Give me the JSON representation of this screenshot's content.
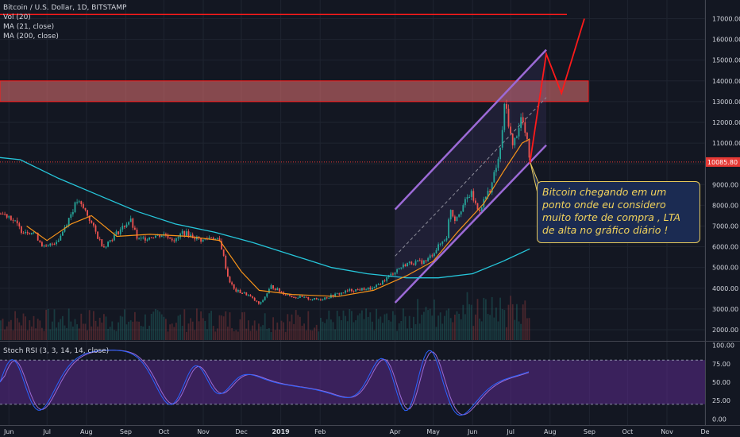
{
  "header": {
    "symbol_line": "Bitcoin / U.S. Dollar, 1D, BITSTAMP",
    "indicators": [
      "Vol (20)",
      "MA (21, close)",
      "MA (200, close)"
    ],
    "stoch_label": "Stoch RSI (3, 3, 14, 14, close)"
  },
  "annotation": {
    "text": "Bitcoin chegando em um ponto onde eu considero muito forte de compra , LTA de alta no gráfico diário !"
  },
  "colors": {
    "background": "#131722",
    "grid": "#1f2430",
    "candle_up": "#26a69a",
    "candle_down": "#ef5350",
    "ma21": "#f7931a",
    "ma200": "#26c6da",
    "zone": "#e57373",
    "channel": "#9c6ad6",
    "projection": "#ff1a1a",
    "stoch_band": "#5b2a8c",
    "stoch_k": "#2962ff",
    "stoch_d": "#9c6ad6",
    "price_tag": "#e53935"
  },
  "chart_data": [
    {
      "type": "line",
      "title": "Bitcoin / U.S. Dollar, 1D, BITSTAMP",
      "x_ticks": [
        "Jun",
        "Jul",
        "Aug",
        "Sep",
        "Oct",
        "Nov",
        "Dec",
        "2019",
        "Feb",
        "Apr",
        "May",
        "Jun",
        "Jul",
        "Aug",
        "Sep",
        "Oct",
        "Nov",
        "De"
      ],
      "y_ticks": [
        2000,
        3000,
        4000,
        5000,
        6000,
        7000,
        8000,
        9000,
        10000,
        11000,
        12000,
        13000,
        14000,
        15000,
        16000,
        17000
      ],
      "y_ticks_labels": [
        "2000.00",
        "3000.00",
        "4000.00",
        "5000.00",
        "6000.00",
        "7000.00",
        "8000.00",
        "9000.00",
        "10000.00",
        "11000.00",
        "12000.00",
        "13000.00",
        "14000.00",
        "15000.00",
        "16000.00",
        "17000.00"
      ],
      "ylim": [
        1500,
        17900
      ],
      "last_price": 10085.8,
      "last_price_label": "10085.80",
      "resistance_line": 17200,
      "zone": [
        13000,
        14000
      ],
      "price_path": [
        [
          "2018-05-25",
          7600
        ],
        [
          "2018-06-01",
          7500
        ],
        [
          "2018-06-10",
          6800
        ],
        [
          "2018-06-20",
          6700
        ],
        [
          "2018-06-29",
          5900
        ],
        [
          "2018-07-10",
          6400
        ],
        [
          "2018-07-24",
          8200
        ],
        [
          "2018-07-31",
          7700
        ],
        [
          "2018-08-10",
          6400
        ],
        [
          "2018-08-14",
          6000
        ],
        [
          "2018-08-25",
          6700
        ],
        [
          "2018-09-04",
          7300
        ],
        [
          "2018-09-10",
          6300
        ],
        [
          "2018-09-20",
          6500
        ],
        [
          "2018-10-01",
          6600
        ],
        [
          "2018-10-10",
          6300
        ],
        [
          "2018-10-15",
          6700
        ],
        [
          "2018-10-31",
          6300
        ],
        [
          "2018-11-07",
          6500
        ],
        [
          "2018-11-14",
          6200
        ],
        [
          "2018-11-20",
          4500
        ],
        [
          "2018-11-25",
          3900
        ],
        [
          "2018-12-05",
          3700
        ],
        [
          "2018-12-15",
          3200
        ],
        [
          "2018-12-24",
          4100
        ],
        [
          "2019-01-01",
          3800
        ],
        [
          "2019-01-10",
          3600
        ],
        [
          "2019-01-29",
          3450
        ],
        [
          "2019-02-08",
          3600
        ],
        [
          "2019-02-24",
          3900
        ],
        [
          "2019-03-15",
          4000
        ],
        [
          "2019-04-02",
          4900
        ],
        [
          "2019-04-10",
          5200
        ],
        [
          "2019-04-25",
          5300
        ],
        [
          "2019-05-11",
          6500
        ],
        [
          "2019-05-14",
          7900
        ],
        [
          "2019-05-17",
          7300
        ],
        [
          "2019-05-30",
          8600
        ],
        [
          "2019-06-05",
          7700
        ],
        [
          "2019-06-15",
          8900
        ],
        [
          "2019-06-22",
          10500
        ],
        [
          "2019-06-26",
          13000
        ],
        [
          "2019-07-02",
          10800
        ],
        [
          "2019-07-09",
          12300
        ],
        [
          "2019-07-14",
          10800
        ],
        [
          "2019-07-16",
          10000
        ]
      ],
      "ma21_path": [
        [
          "2018-06-15",
          7000
        ],
        [
          "2018-07-01",
          6300
        ],
        [
          "2018-07-20",
          7100
        ],
        [
          "2018-08-05",
          7500
        ],
        [
          "2018-08-25",
          6500
        ],
        [
          "2018-09-20",
          6600
        ],
        [
          "2018-10-20",
          6500
        ],
        [
          "2018-11-14",
          6300
        ],
        [
          "2018-12-01",
          4800
        ],
        [
          "2018-12-15",
          3900
        ],
        [
          "2019-01-10",
          3700
        ],
        [
          "2019-02-15",
          3600
        ],
        [
          "2019-03-15",
          3900
        ],
        [
          "2019-04-10",
          4600
        ],
        [
          "2019-05-01",
          5300
        ],
        [
          "2019-05-20",
          6700
        ],
        [
          "2019-06-10",
          8100
        ],
        [
          "2019-06-25",
          9600
        ],
        [
          "2019-07-10",
          11000
        ],
        [
          "2019-07-16",
          11200
        ]
      ],
      "ma200_path": [
        [
          "2018-05-25",
          10300
        ],
        [
          "2018-06-10",
          10200
        ],
        [
          "2018-07-10",
          9300
        ],
        [
          "2018-08-10",
          8500
        ],
        [
          "2018-09-10",
          7700
        ],
        [
          "2018-10-10",
          7100
        ],
        [
          "2018-11-10",
          6700
        ],
        [
          "2018-12-10",
          6200
        ],
        [
          "2019-01-10",
          5600
        ],
        [
          "2019-02-10",
          5000
        ],
        [
          "2019-03-10",
          4700
        ],
        [
          "2019-04-10",
          4500
        ],
        [
          "2019-05-05",
          4500
        ],
        [
          "2019-06-01",
          4700
        ],
        [
          "2019-06-25",
          5300
        ],
        [
          "2019-07-16",
          5900
        ]
      ],
      "channel": {
        "upper": [
          [
            "2019-04-01",
            7800
          ],
          [
            "2019-07-29",
            15500
          ]
        ],
        "lower": [
          [
            "2019-04-01",
            3300
          ],
          [
            "2019-07-29",
            10900
          ]
        ]
      },
      "projection": [
        [
          "2019-07-16",
          10000
        ],
        [
          "2019-07-29",
          15300
        ],
        [
          "2019-08-10",
          13400
        ],
        [
          "2019-08-28",
          17000
        ]
      ]
    },
    {
      "type": "line",
      "title": "Stoch RSI (3, 3, 14, 14, close)",
      "y_ticks": [
        0,
        25,
        50,
        75,
        100
      ],
      "y_ticks_labels": [
        "0.00",
        "25.00",
        "50.00",
        "75.00",
        "100.00"
      ],
      "band": [
        20,
        80
      ],
      "ylim": [
        -5,
        105
      ]
    }
  ]
}
